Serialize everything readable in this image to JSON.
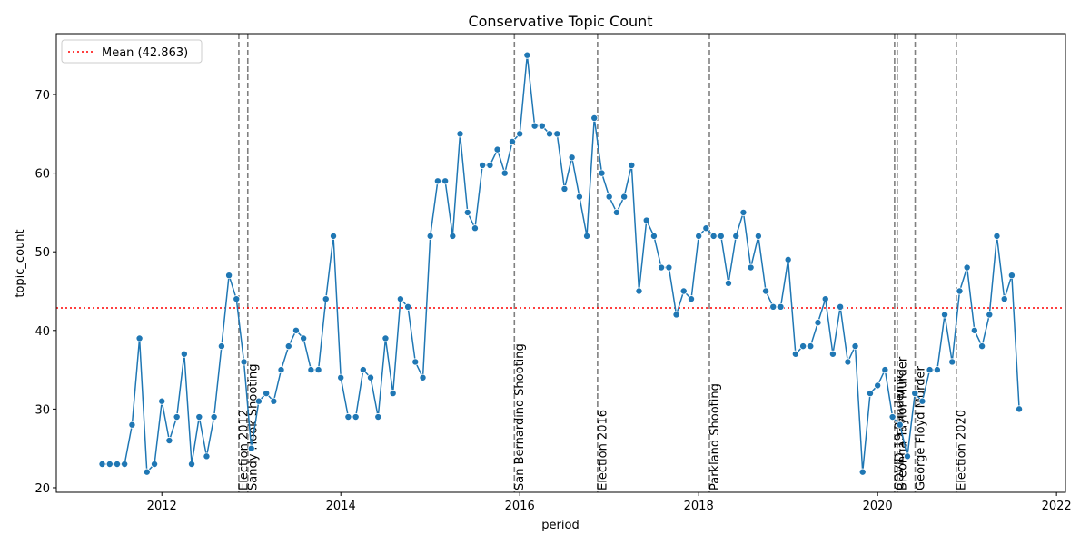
{
  "chart_data": {
    "type": "line",
    "title": "Conservative Topic Count",
    "x_label": "period",
    "y_label": "topic_count",
    "color": "#1f77b4",
    "x": [
      2011.333,
      2011.417,
      2011.5,
      2011.583,
      2011.667,
      2011.75,
      2011.833,
      2011.917,
      2012.0,
      2012.083,
      2012.167,
      2012.25,
      2012.333,
      2012.417,
      2012.5,
      2012.583,
      2012.667,
      2012.75,
      2012.833,
      2012.917,
      2013.0,
      2013.083,
      2013.167,
      2013.25,
      2013.333,
      2013.417,
      2013.5,
      2013.583,
      2013.667,
      2013.75,
      2013.833,
      2013.917,
      2014.0,
      2014.083,
      2014.167,
      2014.25,
      2014.333,
      2014.417,
      2014.5,
      2014.583,
      2014.667,
      2014.75,
      2014.833,
      2014.917,
      2015.0,
      2015.083,
      2015.167,
      2015.25,
      2015.333,
      2015.417,
      2015.5,
      2015.583,
      2015.667,
      2015.75,
      2015.833,
      2015.917,
      2016.0,
      2016.083,
      2016.167,
      2016.25,
      2016.333,
      2016.417,
      2016.5,
      2016.583,
      2016.667,
      2016.75,
      2016.833,
      2016.917,
      2017.0,
      2017.083,
      2017.167,
      2017.25,
      2017.333,
      2017.417,
      2017.5,
      2017.583,
      2017.667,
      2017.75,
      2017.833,
      2017.917,
      2018.0,
      2018.083,
      2018.167,
      2018.25,
      2018.333,
      2018.417,
      2018.5,
      2018.583,
      2018.667,
      2018.75,
      2018.833,
      2018.917,
      2019.0,
      2019.083,
      2019.167,
      2019.25,
      2019.333,
      2019.417,
      2019.5,
      2019.583,
      2019.667,
      2019.75,
      2019.833,
      2019.917,
      2020.0,
      2020.083,
      2020.167,
      2020.25,
      2020.333,
      2020.417,
      2020.5,
      2020.583,
      2020.667,
      2020.75,
      2020.833,
      2020.917,
      2021.0,
      2021.083,
      2021.167,
      2021.25,
      2021.333,
      2021.417,
      2021.5,
      2021.583
    ],
    "values": [
      23,
      23,
      23,
      23,
      28,
      39,
      22,
      23,
      31,
      26,
      29,
      37,
      23,
      29,
      24,
      29,
      38,
      47,
      44,
      36,
      25,
      31,
      32,
      31,
      35,
      38,
      40,
      39,
      35,
      35,
      44,
      52,
      34,
      29,
      29,
      35,
      34,
      29,
      39,
      32,
      44,
      43,
      36,
      34,
      52,
      59,
      59,
      52,
      65,
      55,
      53,
      61,
      61,
      63,
      60,
      64,
      65,
      75,
      66,
      66,
      65,
      65,
      58,
      62,
      57,
      52,
      67,
      60,
      57,
      55,
      57,
      61,
      45,
      54,
      52,
      48,
      48,
      42,
      45,
      44,
      52,
      53,
      52,
      52,
      46,
      52,
      55,
      48,
      52,
      45,
      43,
      43,
      49,
      37,
      38,
      38,
      41,
      44,
      37,
      43,
      36,
      38,
      22,
      32,
      33,
      35,
      29,
      28,
      24,
      32,
      31,
      35,
      35,
      42,
      36,
      45,
      48,
      40,
      38,
      42,
      52,
      44,
      47,
      30
    ],
    "mean": {
      "value": 42.863,
      "label": "Mean (42.863)",
      "color": "#ff0000"
    },
    "events": [
      {
        "x": 2012.86,
        "label": "Election 2012"
      },
      {
        "x": 2012.96,
        "label": "Sandy Hook Shooting"
      },
      {
        "x": 2015.94,
        "label": "San Bernardino Shooting"
      },
      {
        "x": 2016.87,
        "label": "Election 2016"
      },
      {
        "x": 2018.12,
        "label": "Parkland Shooting"
      },
      {
        "x": 2020.19,
        "label": "COVID-19 Pandemic"
      },
      {
        "x": 2020.22,
        "label": "Breonna Taylor Murder"
      },
      {
        "x": 2020.42,
        "label": "George Floyd Murder"
      },
      {
        "x": 2020.88,
        "label": "Election 2020"
      }
    ],
    "xlim": [
      2010.82,
      2022.1
    ],
    "xticks": [
      2012,
      2014,
      2016,
      2018,
      2020,
      2022
    ],
    "ylim": [
      19.42,
      77.74
    ],
    "yticks": [
      20,
      30,
      40,
      50,
      60,
      70
    ],
    "legend": "upper left"
  }
}
